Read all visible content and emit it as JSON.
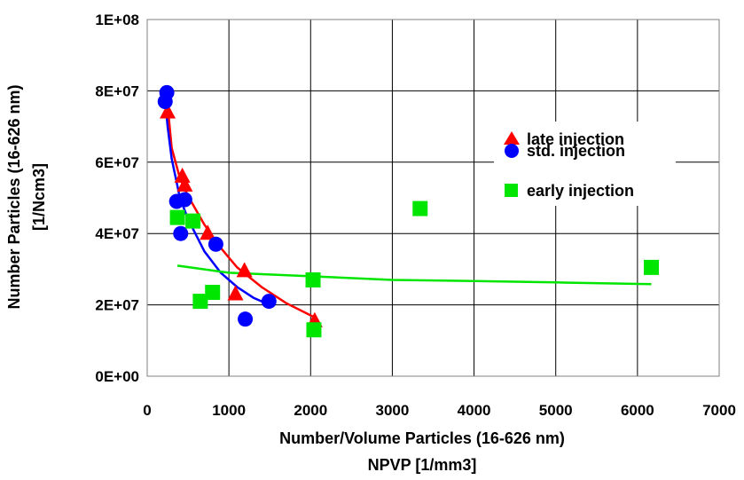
{
  "chart_data": {
    "type": "scatter",
    "xlabel": "Number/Volume Particles (16-626 nm)",
    "xlabel2": "NPVP [1/mm3]",
    "ylabel": "Number Particles (16-626 nm)",
    "ylabel2": "[1/Ncm3]",
    "xlim": [
      0,
      7000
    ],
    "ylim": [
      0,
      100000000
    ],
    "xticks": [
      0,
      1000,
      2000,
      3000,
      4000,
      5000,
      6000,
      7000
    ],
    "xtick_labels": [
      "0",
      "1000",
      "2000",
      "3000",
      "4000",
      "5000",
      "6000",
      "7000"
    ],
    "yticks": [
      0,
      20000000,
      40000000,
      60000000,
      80000000,
      100000000
    ],
    "ytick_labels": [
      "0E+00",
      "2E+07",
      "4E+07",
      "6E+07",
      "8E+07",
      "1E+08"
    ],
    "grid": true,
    "legend_position": "top-right",
    "series": [
      {
        "name": "late injection",
        "marker": "triangle",
        "color": "#ff0000",
        "points": [
          [
            250,
            74000000
          ],
          [
            430,
            56000000
          ],
          [
            460,
            53500000
          ],
          [
            740,
            40000000
          ],
          [
            1080,
            23000000
          ],
          [
            1190,
            29500000
          ],
          [
            2050,
            15500000
          ]
        ],
        "trend": [
          [
            250,
            76000000
          ],
          [
            300,
            64000000
          ],
          [
            400,
            55500000
          ],
          [
            500,
            50500000
          ],
          [
            700,
            42500000
          ],
          [
            900,
            36000000
          ],
          [
            1100,
            30500000
          ],
          [
            1400,
            25000000
          ],
          [
            1700,
            20500000
          ],
          [
            2050,
            16500000
          ]
        ]
      },
      {
        "name": "std. injection",
        "marker": "circle",
        "color": "#0000ff",
        "points": [
          [
            220,
            77000000
          ],
          [
            240,
            79500000
          ],
          [
            360,
            49000000
          ],
          [
            410,
            40000000
          ],
          [
            460,
            49500000
          ],
          [
            840,
            37000000
          ],
          [
            1200,
            16000000
          ],
          [
            1490,
            21000000
          ]
        ],
        "trend": [
          [
            210,
            80000000
          ],
          [
            250,
            70000000
          ],
          [
            300,
            61000000
          ],
          [
            400,
            50000000
          ],
          [
            500,
            44000000
          ],
          [
            700,
            35000000
          ],
          [
            900,
            29000000
          ],
          [
            1100,
            25000000
          ],
          [
            1300,
            22000000
          ],
          [
            1500,
            20000000
          ]
        ]
      },
      {
        "name": "early injection",
        "marker": "square",
        "color": "#00e600",
        "points": [
          [
            370,
            44500000
          ],
          [
            560,
            43500000
          ],
          [
            650,
            21000000
          ],
          [
            800,
            23500000
          ],
          [
            2030,
            27000000
          ],
          [
            2040,
            13000000
          ],
          [
            3340,
            47000000
          ],
          [
            6170,
            30500000
          ]
        ],
        "trend": [
          [
            370,
            31000000
          ],
          [
            1000,
            29000000
          ],
          [
            2000,
            28000000
          ],
          [
            3000,
            27000000
          ],
          [
            4000,
            26700000
          ],
          [
            5000,
            26300000
          ],
          [
            6170,
            25800000
          ]
        ]
      }
    ]
  }
}
